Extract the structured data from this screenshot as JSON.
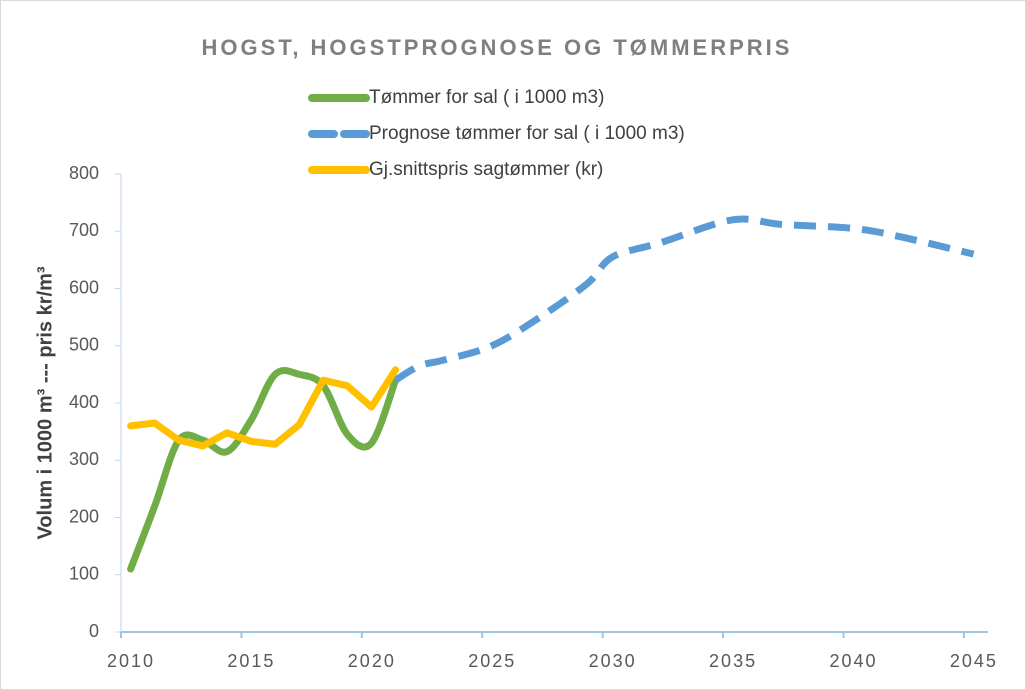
{
  "chart_data": {
    "type": "line",
    "title": "HOGST, HOGSTPROGNOSE OG TØMMERPRIS",
    "y_label": "Volum i 1000 m³ --- pris kr/m³",
    "xlim": [
      2010,
      2046
    ],
    "xticks": [
      2010,
      2015,
      2020,
      2025,
      2030,
      2035,
      2040,
      2045
    ],
    "ylim": [
      0,
      800
    ],
    "yticks": [
      0,
      100,
      200,
      300,
      400,
      500,
      600,
      700,
      800
    ],
    "series": [
      {
        "name": "Tømmer for sal ( i 1000 m3)",
        "color": "#70ad47",
        "style": "solid",
        "smooth": true,
        "x": [
          2010.4,
          2011.4,
          2012.4,
          2013.4,
          2014.4,
          2015.4,
          2016.4,
          2017.4,
          2018.4,
          2019.4,
          2020.4,
          2021.4
        ],
        "values": [
          110,
          220,
          335,
          335,
          315,
          370,
          450,
          450,
          430,
          345,
          330,
          440
        ]
      },
      {
        "name": "Prognose tømmer for sal ( i 1000 m3)",
        "color": "#5b9bd5",
        "style": "dashed",
        "smooth": true,
        "x": [
          2021.4,
          2022.4,
          2023.4,
          2025.4,
          2027.4,
          2029.4,
          2030.4,
          2032.4,
          2035.4,
          2037.4,
          2040.4,
          2042.4,
          2045.4
        ],
        "values": [
          440,
          465,
          475,
          500,
          550,
          610,
          655,
          680,
          720,
          712,
          705,
          690,
          660
        ]
      },
      {
        "name": "Gj.snittspris sagtømmer (kr)",
        "color": "#ffc000",
        "style": "solid",
        "smooth": false,
        "x": [
          2010.4,
          2011.4,
          2012.4,
          2013.4,
          2014.4,
          2015.4,
          2016.4,
          2017.4,
          2018.4,
          2019.4,
          2020.4,
          2021.4
        ],
        "values": [
          360,
          365,
          335,
          325,
          348,
          333,
          328,
          362,
          440,
          430,
          393,
          458
        ]
      }
    ]
  }
}
